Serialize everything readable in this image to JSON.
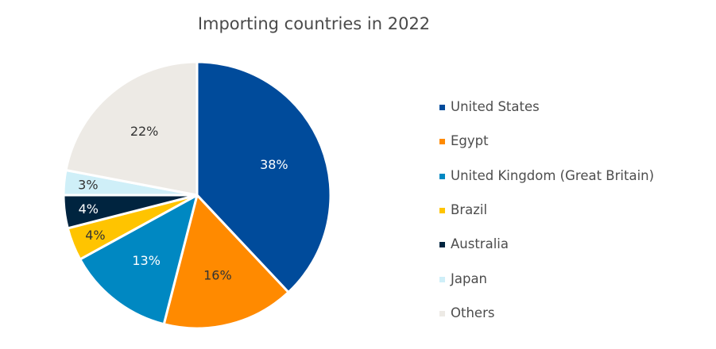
{
  "chart_data": {
    "type": "pie",
    "title": "Importing countries in 2022",
    "categories": [
      "United States",
      "Egypt",
      "United Kingdom (Great Britain)",
      "Brazil",
      "Australia",
      "Japan",
      "Others"
    ],
    "values": [
      38,
      16,
      13,
      4,
      4,
      3,
      22
    ],
    "labels": [
      "38%",
      "16%",
      "13%",
      "4%",
      "4%",
      "3%",
      "22%"
    ],
    "colors": [
      "#004B9B",
      "#FF8A00",
      "#0088C2",
      "#FFC400",
      "#00243F",
      "#CFEFF8",
      "#EDEAE5"
    ],
    "label_colors": [
      "#ffffff",
      "#333333",
      "#ffffff",
      "#333333",
      "#ffffff",
      "#333333",
      "#333333"
    ],
    "legend_position": "right"
  }
}
